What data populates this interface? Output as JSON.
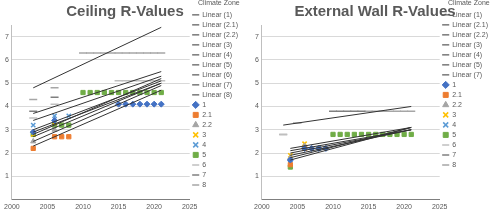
{
  "chart_data": [
    {
      "type": "scatter",
      "title": "Ceiling R-Values",
      "legend": "right",
      "legend_title": "Climate Zone",
      "grid": "y",
      "xlim": [
        2000,
        2025
      ],
      "xticks": [
        2000,
        2005,
        2010,
        2015,
        2020,
        2025
      ],
      "ylim": [
        0,
        7.5
      ],
      "yticks": [
        1,
        2,
        3,
        4,
        5,
        6,
        7
      ],
      "series": [
        {
          "name": "1",
          "color": "#4472c4",
          "marker": "diamond",
          "x": [
            2003,
            2006,
            2015,
            2016,
            2017,
            2018,
            2019,
            2020,
            2021
          ],
          "values": [
            2.9,
            3.4,
            4.1,
            4.1,
            4.1,
            4.1,
            4.1,
            4.1,
            4.1
          ]
        },
        {
          "name": "2.1",
          "color": "#ed7d31",
          "marker": "square",
          "x": [
            2003,
            2006,
            2007,
            2008
          ],
          "values": [
            2.2,
            2.7,
            2.7,
            2.7
          ]
        },
        {
          "name": "2.2",
          "color": "#a5a5a5",
          "marker": "triangle",
          "x": [
            2003,
            2006
          ],
          "values": [
            2.5,
            3.0
          ]
        },
        {
          "name": "3",
          "color": "#ffc000",
          "marker": "x",
          "x": [
            2003,
            2006
          ],
          "values": [
            2.8,
            3.3
          ]
        },
        {
          "name": "4",
          "color": "#5b9bd5",
          "marker": "x",
          "x": [
            2003,
            2006,
            2008
          ],
          "values": [
            3.2,
            3.6,
            3.6
          ]
        },
        {
          "name": "5",
          "color": "#70ad47",
          "marker": "square",
          "x": [
            2003,
            2006,
            2007,
            2008,
            2010,
            2011,
            2012,
            2013,
            2014,
            2015,
            2016,
            2017,
            2018,
            2019,
            2020,
            2021
          ],
          "values": [
            2.8,
            3.2,
            3.2,
            3.2,
            4.6,
            4.6,
            4.6,
            4.6,
            4.6,
            4.6,
            4.6,
            4.6,
            4.6,
            4.6,
            4.6,
            4.6
          ]
        },
        {
          "name": "6",
          "color": "#bfbfbf",
          "marker": "dash",
          "x": [
            2003,
            2006,
            2015,
            2016,
            2017,
            2018,
            2019,
            2020,
            2021
          ],
          "values": [
            3.5,
            4.1,
            5.1,
            5.1,
            5.1,
            5.1,
            5.1,
            5.1,
            5.1
          ]
        },
        {
          "name": "7",
          "color": "#7f7f7f",
          "marker": "dash",
          "x": [
            2003,
            2006
          ],
          "values": [
            3.8,
            4.4
          ]
        },
        {
          "name": "8",
          "color": "#a6a6a6",
          "marker": "dash",
          "x": [
            2003,
            2006,
            2010,
            2011,
            2012,
            2013,
            2014,
            2015,
            2016,
            2017,
            2018,
            2019,
            2020,
            2021
          ],
          "values": [
            4.3,
            4.8,
            6.3,
            6.3,
            6.3,
            6.3,
            6.3,
            6.3,
            6.3,
            6.3,
            6.3,
            6.3,
            6.3,
            6.3
          ]
        },
        {
          "name": "Linear (1)",
          "type": "line",
          "line_style": "solid",
          "color": "#333333",
          "x": [
            2003,
            2021
          ],
          "values": [
            2.9,
            5.0
          ]
        },
        {
          "name": "Linear (2.1)",
          "type": "line",
          "line_style": "solid",
          "color": "#333333",
          "x": [
            2003,
            2021
          ],
          "values": [
            2.3,
            4.7
          ]
        },
        {
          "name": "Linear (2.2)",
          "type": "line",
          "line_style": "solid",
          "color": "#333333",
          "x": [
            2003,
            2021
          ],
          "values": [
            2.5,
            4.9
          ]
        },
        {
          "name": "Linear (3)",
          "type": "line",
          "line_style": "solid",
          "color": "#333333",
          "x": [
            2003,
            2021
          ],
          "values": [
            2.7,
            5.0
          ]
        },
        {
          "name": "Linear (4)",
          "type": "line",
          "line_style": "solid",
          "color": "#333333",
          "x": [
            2003,
            2021
          ],
          "values": [
            3.0,
            5.1
          ]
        },
        {
          "name": "Linear (5)",
          "type": "line",
          "line_style": "solid",
          "color": "#333333",
          "x": [
            2003,
            2021
          ],
          "values": [
            2.8,
            5.2
          ]
        },
        {
          "name": "Linear (6)",
          "type": "line",
          "line_style": "solid",
          "color": "#333333",
          "x": [
            2003,
            2021
          ],
          "values": [
            3.4,
            5.3
          ]
        },
        {
          "name": "Linear (7)",
          "type": "line",
          "line_style": "solid",
          "color": "#333333",
          "x": [
            2003,
            2021
          ],
          "values": [
            3.7,
            5.5
          ]
        },
        {
          "name": "Linear (8)",
          "type": "line",
          "line_style": "solid",
          "color": "#333333",
          "x": [
            2003,
            2021
          ],
          "values": [
            4.8,
            7.4
          ]
        }
      ]
    },
    {
      "type": "scatter",
      "title": "External Wall R-Values",
      "legend": "right",
      "legend_title": "Climate Zone",
      "grid": "y",
      "xlim": [
        2000,
        2025
      ],
      "xticks": [
        2000,
        2005,
        2010,
        2015,
        2020,
        2025
      ],
      "ylim": [
        0,
        7.5
      ],
      "yticks": [
        1,
        2,
        3,
        4,
        5,
        6,
        7
      ],
      "series": [
        {
          "name": "1",
          "color": "#4472c4",
          "marker": "diamond",
          "x": [
            2004,
            2006,
            2007,
            2008,
            2009
          ],
          "values": [
            1.7,
            2.2,
            2.2,
            2.2,
            2.2
          ]
        },
        {
          "name": "2.1",
          "color": "#ed7d31",
          "marker": "square",
          "x": [
            2004,
            2006
          ],
          "values": [
            1.5,
            2.2
          ]
        },
        {
          "name": "2.2",
          "color": "#a5a5a5",
          "marker": "triangle",
          "x": [
            2004,
            2006
          ],
          "values": [
            1.8,
            2.3
          ]
        },
        {
          "name": "3",
          "color": "#ffc000",
          "marker": "x",
          "x": [
            2004,
            2006
          ],
          "values": [
            1.9,
            2.4
          ]
        },
        {
          "name": "4",
          "color": "#5b9bd5",
          "marker": "x",
          "x": [
            2004,
            2006,
            2008
          ],
          "values": [
            1.7,
            2.2,
            2.2
          ]
        },
        {
          "name": "5",
          "color": "#70ad47",
          "marker": "square",
          "x": [
            2004,
            2006,
            2010,
            2011,
            2012,
            2013,
            2014,
            2015,
            2016,
            2017,
            2018,
            2019,
            2020,
            2021
          ],
          "values": [
            1.4,
            2.2,
            2.8,
            2.8,
            2.8,
            2.8,
            2.8,
            2.8,
            2.8,
            2.8,
            2.8,
            2.8,
            2.8,
            2.8
          ]
        },
        {
          "name": "6",
          "color": "#bfbfbf",
          "marker": "dash",
          "x": [
            2003,
            2005
          ],
          "values": [
            2.8,
            3.3
          ]
        },
        {
          "name": "7",
          "color": "#7f7f7f",
          "marker": "dash",
          "x": [
            2005,
            2010,
            2011,
            2012,
            2013,
            2014
          ],
          "values": [
            3.3,
            3.8,
            3.8,
            3.8,
            3.8,
            3.8
          ]
        },
        {
          "name": "8",
          "color": "#a6a6a6",
          "marker": "dash",
          "x": [
            2003,
            2015,
            2016,
            2017,
            2018,
            2019,
            2020,
            2021
          ],
          "values": [
            2.8,
            3.8,
            3.8,
            3.8,
            3.8,
            3.8,
            3.8,
            3.8
          ]
        },
        {
          "name": "Linear (1)",
          "type": "line",
          "line_style": "solid",
          "color": "#333333",
          "x": [
            2004,
            2021
          ],
          "values": [
            1.8,
            3.1
          ]
        },
        {
          "name": "Linear (2.1)",
          "type": "line",
          "line_style": "solid",
          "color": "#333333",
          "x": [
            2004,
            2021
          ],
          "values": [
            1.9,
            3.0
          ]
        },
        {
          "name": "Linear (2.2)",
          "type": "line",
          "line_style": "solid",
          "color": "#333333",
          "x": [
            2004,
            2021
          ],
          "values": [
            2.0,
            3.0
          ]
        },
        {
          "name": "Linear (3)",
          "type": "line",
          "line_style": "solid",
          "color": "#333333",
          "x": [
            2004,
            2021
          ],
          "values": [
            2.1,
            3.0
          ]
        },
        {
          "name": "Linear (4)",
          "type": "line",
          "line_style": "solid",
          "color": "#333333",
          "x": [
            2004,
            2021
          ],
          "values": [
            2.2,
            3.1
          ]
        },
        {
          "name": "Linear (5)",
          "type": "line",
          "line_style": "solid",
          "color": "#333333",
          "x": [
            2004,
            2021
          ],
          "values": [
            1.7,
            3.1
          ]
        },
        {
          "name": "Linear (7)",
          "type": "line",
          "line_style": "solid",
          "color": "#333333",
          "x": [
            2003,
            2021
          ],
          "values": [
            3.2,
            4.0
          ]
        }
      ]
    }
  ]
}
